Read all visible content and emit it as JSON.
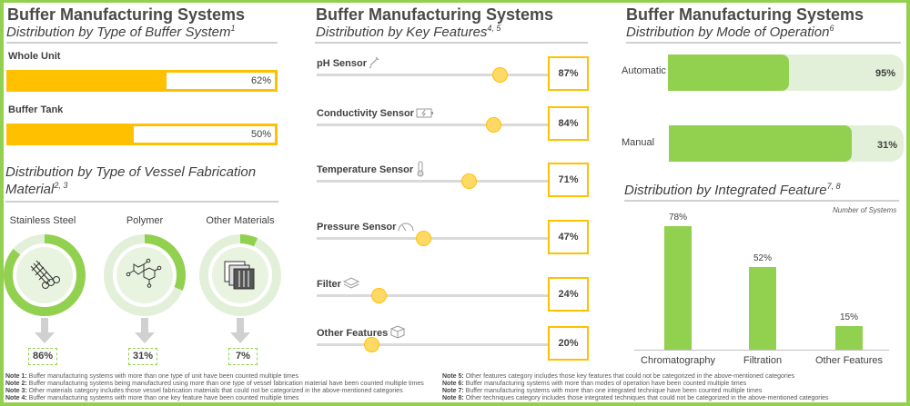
{
  "colors": {
    "frame": "#92d050",
    "accent_yellow": "#ffc000",
    "accent_green": "#92d050",
    "light_green": "#e2f0d9",
    "knob": "#ffd966"
  },
  "panel1": {
    "title": "Buffer Manufacturing Systems",
    "subtitle": "Distribution by Type of Buffer System",
    "subtitle_sup": "1",
    "buffer_types": [
      {
        "label": "Whole Unit",
        "value": "62%",
        "pct": 62
      },
      {
        "label": "Buffer Tank",
        "value": "50%",
        "pct": 50
      }
    ],
    "material_subtitle_line1": "Distribution by Type of Vessel Fabrication",
    "material_subtitle_line2": "Material",
    "material_subtitle_sup": "2, 3",
    "materials": [
      {
        "label": "Stainless Steel",
        "value": "86%",
        "pct": 86,
        "icon": "steel-bars-icon"
      },
      {
        "label": "Polymer",
        "value": "31%",
        "pct": 31,
        "icon": "molecule-icon"
      },
      {
        "label": "Other Materials",
        "value": "7%",
        "pct": 7,
        "icon": "stacked-sheets-icon"
      }
    ]
  },
  "panel2": {
    "title": "Buffer Manufacturing Systems",
    "subtitle": "Distribution by Key Features",
    "subtitle_sup": "4, 5",
    "features": [
      {
        "label": "pH Sensor",
        "value": "87%",
        "pct": 87,
        "icon": "pipette-icon"
      },
      {
        "label": "Conductivity Sensor",
        "value": "84%",
        "pct": 84,
        "icon": "battery-charge-icon"
      },
      {
        "label": "Temperature Sensor",
        "value": "71%",
        "pct": 71,
        "icon": "thermometer-icon"
      },
      {
        "label": "Pressure Sensor",
        "value": "47%",
        "pct": 47,
        "icon": "gauge-icon"
      },
      {
        "label": "Filter",
        "value": "24%",
        "pct": 24,
        "icon": "layers-icon"
      },
      {
        "label": "Other Features",
        "value": "20%",
        "pct": 20,
        "icon": "boxes-icon"
      }
    ]
  },
  "panel3": {
    "title": "Buffer Manufacturing Systems",
    "subtitle": "Distribution by Mode of Operation",
    "subtitle_sup": "6",
    "modes": [
      {
        "label": "Automatic",
        "value": "95%",
        "pct": 95
      },
      {
        "label": "Manual",
        "value": "31%",
        "pct": 31
      }
    ],
    "integrated_subtitle": "Distribution by Integrated Feature",
    "integrated_sup": "7, 8"
  },
  "chart_data": {
    "type": "bar",
    "title": "Distribution by Integrated Feature",
    "categories": [
      "Chromatography",
      "Filtration",
      "Other Features"
    ],
    "values": [
      78,
      52,
      15
    ],
    "value_labels": [
      "78%",
      "52%",
      "15%"
    ],
    "xlabel": "",
    "ylabel": "Number of Systems",
    "ylim": [
      0,
      100
    ],
    "grid": false,
    "legend": "none"
  },
  "notes_left": [
    {
      "label": "Note 1:",
      "text": "Buffer manufacturing systems with more than one type of unit have been counted multiple times"
    },
    {
      "label": "Note 2:",
      "text": "Buffer manufacturing systems being manufactured using more than one type of vessel fabrication material have been counted multiple times"
    },
    {
      "label": "Note 3:",
      "text": "Other materials category includes those vessel fabrication materials that could not be categorized in the above-mentioned categories"
    },
    {
      "label": "Note 4:",
      "text": "Buffer manufacturing systems with more than one key feature have been counted multiple times"
    }
  ],
  "notes_right": [
    {
      "label": "Note 5:",
      "text": "Other features category includes those key features that could not be categorized in the above-mentioned categories"
    },
    {
      "label": "Note 6:",
      "text": "Buffer manufacturing systems with more than modes of operation have been counted multiple times"
    },
    {
      "label": "Note 7:",
      "text": "Buffer manufacturing systems with more than one integrated technique have been counted multiple times"
    },
    {
      "label": "Note 8:",
      "text": "Other techniques category includes those integrated techniques that could not be categorized in the above-mentioned categories"
    }
  ]
}
